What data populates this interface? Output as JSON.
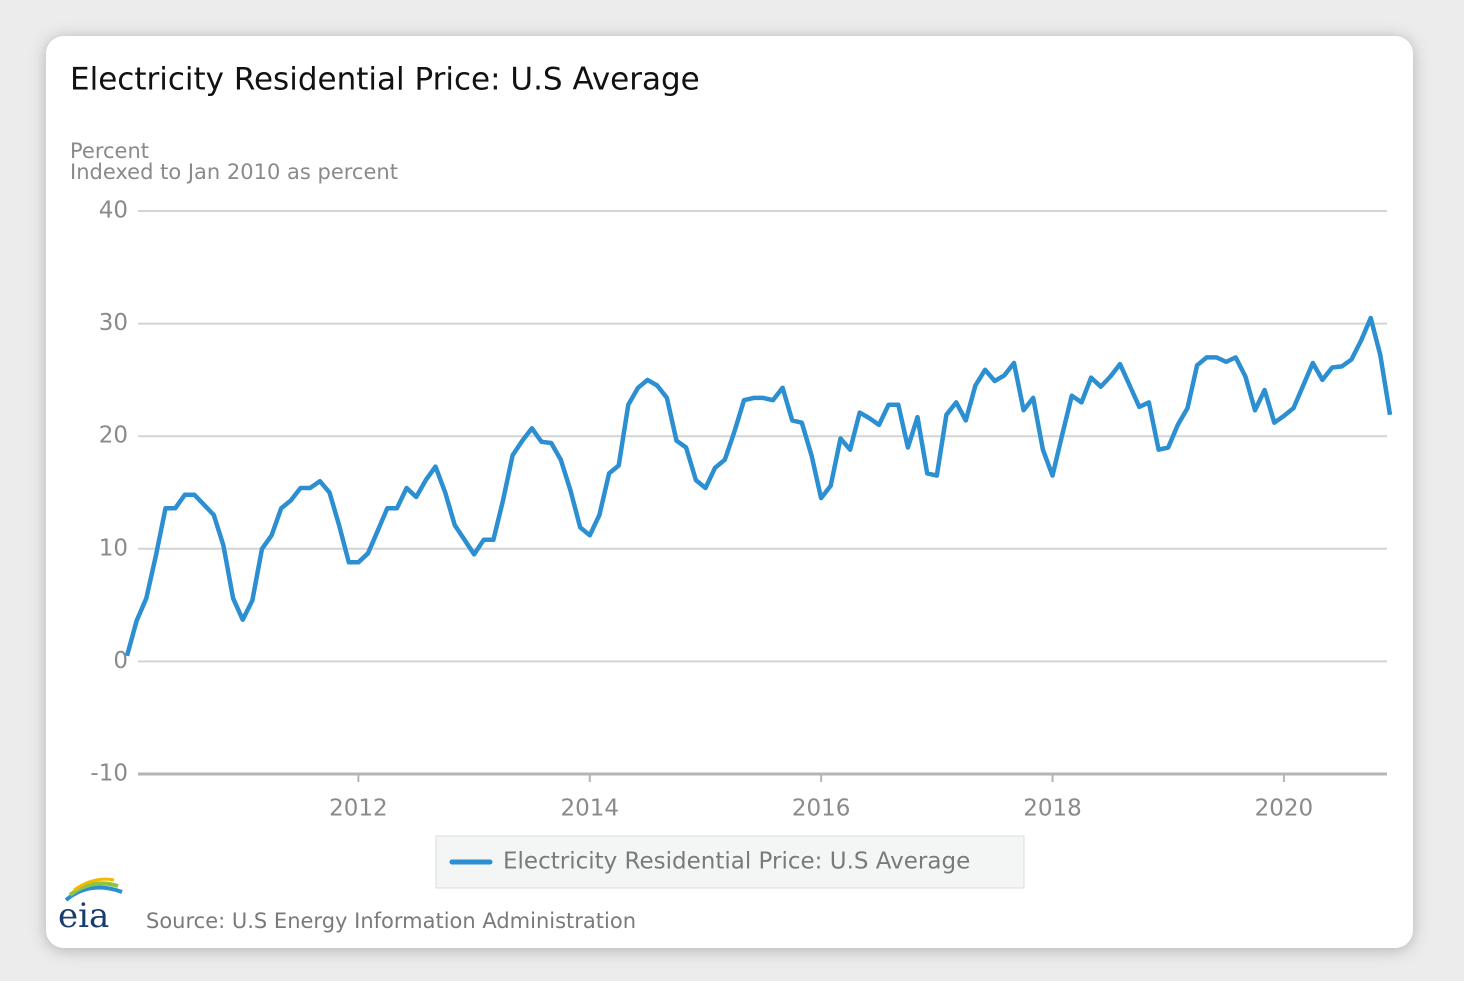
{
  "chart_data": {
    "type": "line",
    "title": "Electricity Residential Price: U.S Average",
    "y_label": "Percent",
    "y_sublabel": "Indexed to Jan 2010 as percent",
    "source": "Source: U.S Energy Information Administration",
    "logo": "eia",
    "xlim": [
      2010,
      2020.917
    ],
    "xticks": [
      2012,
      2014,
      2016,
      2018,
      2020
    ],
    "ylim": [
      -10,
      40
    ],
    "yticks": [
      -10,
      0,
      10,
      20,
      30,
      40
    ],
    "grid": true,
    "legend": "bottom",
    "x": [
      2010,
      2010.083,
      2010.167,
      2010.25,
      2010.333,
      2010.417,
      2010.5,
      2010.583,
      2010.667,
      2010.75,
      2010.833,
      2010.917,
      2011,
      2011.083,
      2011.167,
      2011.25,
      2011.333,
      2011.417,
      2011.5,
      2011.583,
      2011.667,
      2011.75,
      2011.833,
      2011.917,
      2012,
      2012.083,
      2012.167,
      2012.25,
      2012.333,
      2012.417,
      2012.5,
      2012.583,
      2012.667,
      2012.75,
      2012.833,
      2012.917,
      2013,
      2013.083,
      2013.167,
      2013.25,
      2013.333,
      2013.417,
      2013.5,
      2013.583,
      2013.667,
      2013.75,
      2013.833,
      2013.917,
      2014,
      2014.083,
      2014.167,
      2014.25,
      2014.333,
      2014.417,
      2014.5,
      2014.583,
      2014.667,
      2014.75,
      2014.833,
      2014.917,
      2015,
      2015.083,
      2015.167,
      2015.25,
      2015.333,
      2015.417,
      2015.5,
      2015.583,
      2015.667,
      2015.75,
      2015.833,
      2015.917,
      2016,
      2016.083,
      2016.167,
      2016.25,
      2016.333,
      2016.417,
      2016.5,
      2016.583,
      2016.667,
      2016.75,
      2016.833,
      2016.917,
      2017,
      2017.083,
      2017.167,
      2017.25,
      2017.333,
      2017.417,
      2017.5,
      2017.583,
      2017.667,
      2017.75,
      2017.833,
      2017.917,
      2018,
      2018.083,
      2018.167,
      2018.25,
      2018.333,
      2018.417,
      2018.5,
      2018.583,
      2018.667,
      2018.75,
      2018.833,
      2018.917,
      2019,
      2019.083,
      2019.167,
      2019.25,
      2019.333,
      2019.417,
      2019.5,
      2019.583,
      2019.667,
      2019.75,
      2019.833,
      2019.917,
      2020,
      2020.083,
      2020.167,
      2020.25,
      2020.333,
      2020.417,
      2020.5,
      2020.583,
      2020.667,
      2020.75,
      2020.833,
      2020.917
    ],
    "series": [
      {
        "name": "Electricity Residential Price: U.S Average",
        "color": "#2b8fd2",
        "values": [
          0.5,
          3.6,
          5.6,
          9.4,
          13.6,
          13.6,
          14.8,
          14.8,
          13.9,
          13.0,
          10.3,
          5.6,
          3.7,
          5.4,
          10.0,
          11.2,
          13.6,
          14.3,
          15.4,
          15.4,
          16.0,
          15.0,
          12.1,
          8.8,
          8.8,
          9.6,
          11.6,
          13.6,
          13.6,
          15.4,
          14.6,
          16.1,
          17.3,
          15.0,
          12.1,
          10.8,
          9.5,
          10.8,
          10.8,
          14.3,
          18.3,
          19.6,
          20.7,
          19.5,
          19.4,
          17.9,
          15.2,
          11.9,
          11.2,
          13.0,
          16.7,
          17.4,
          22.8,
          24.3,
          25.0,
          24.5,
          23.4,
          19.6,
          19.0,
          16.1,
          15.4,
          17.2,
          17.9,
          20.4,
          23.2,
          23.4,
          23.4,
          23.2,
          24.3,
          21.4,
          21.2,
          18.3,
          14.5,
          15.6,
          19.8,
          18.8,
          22.1,
          21.6,
          21.0,
          22.8,
          22.8,
          19.0,
          21.7,
          16.7,
          16.5,
          21.9,
          23.0,
          21.4,
          24.5,
          25.9,
          24.9,
          25.4,
          26.5,
          22.3,
          23.4,
          18.8,
          16.5,
          20.1,
          23.6,
          23.0,
          25.2,
          24.4,
          25.3,
          26.4,
          24.5,
          22.6,
          23.0,
          18.8,
          19.0,
          21.0,
          22.5,
          26.3,
          27.0,
          27.0,
          26.6,
          27.0,
          25.3,
          22.3,
          24.1,
          21.2,
          21.8,
          22.5,
          24.5,
          26.5,
          25.0,
          26.1,
          26.2,
          26.8,
          28.5,
          30.5,
          27.2,
          21.9
        ]
      }
    ]
  }
}
